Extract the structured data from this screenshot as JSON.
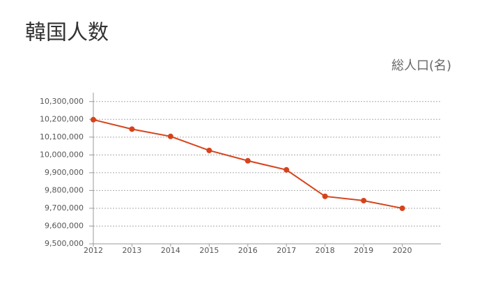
{
  "chart_data": {
    "type": "line",
    "title": "韓国人数",
    "y_label": "総人口(名)",
    "x": [
      2012,
      2013,
      2014,
      2015,
      2016,
      2017,
      2018,
      2019,
      2020
    ],
    "series": [
      {
        "name": "総人口",
        "color": "#d6431b",
        "values": [
          10198000,
          10145000,
          10104000,
          10025000,
          9967000,
          9916000,
          9767000,
          9743000,
          9700000
        ]
      }
    ],
    "xlim": [
      2012,
      2021
    ],
    "xticks": [
      2012,
      2013,
      2014,
      2015,
      2016,
      2017,
      2018,
      2019,
      2020
    ],
    "ylim": [
      9500000,
      10350000
    ],
    "yticks": [
      {
        "value": 9500000,
        "label": "9,500,000"
      },
      {
        "value": 9600000,
        "label": "9,600,000"
      },
      {
        "value": 9700000,
        "label": "9,700,000"
      },
      {
        "value": 9800000,
        "label": "9,800,000"
      },
      {
        "value": 9900000,
        "label": "9,900,000"
      },
      {
        "value": 10000000,
        "label": "10,000,000"
      },
      {
        "value": 10100000,
        "label": "10,100,000"
      },
      {
        "value": 10200000,
        "label": "10,200,000"
      },
      {
        "value": 10300000,
        "label": "10,300,000"
      }
    ],
    "grid": true
  }
}
